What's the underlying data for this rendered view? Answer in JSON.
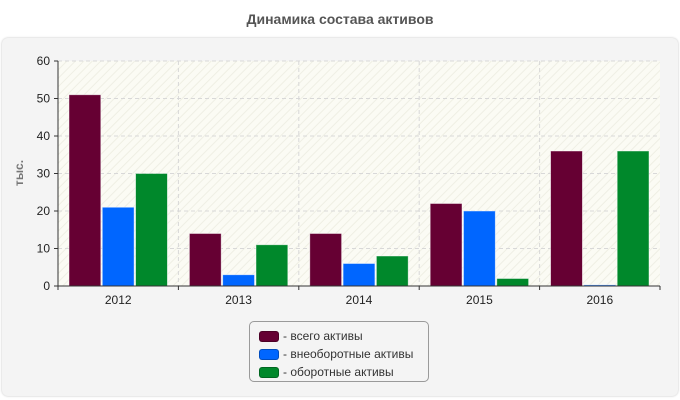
{
  "chart_data": {
    "type": "bar",
    "title": "Динамика состава активов",
    "ylabel": "тыс.",
    "xlabel": "",
    "categories": [
      "2012",
      "2013",
      "2014",
      "2015",
      "2016"
    ],
    "ylim": [
      0,
      60
    ],
    "yticks": [
      "0",
      "10",
      "20",
      "30",
      "40",
      "50",
      "60"
    ],
    "grid": true,
    "legend_placement": "bottom-center",
    "series": [
      {
        "name": "- всего активы",
        "color": "#660033",
        "values": [
          51,
          14,
          14,
          22,
          36
        ]
      },
      {
        "name": "- внеоборотные активы",
        "color": "#0066ff",
        "values": [
          21,
          3,
          6,
          20,
          0.3
        ]
      },
      {
        "name": "- оборотные активы",
        "color": "#00882b",
        "values": [
          30,
          11,
          8,
          2,
          36
        ]
      }
    ]
  }
}
